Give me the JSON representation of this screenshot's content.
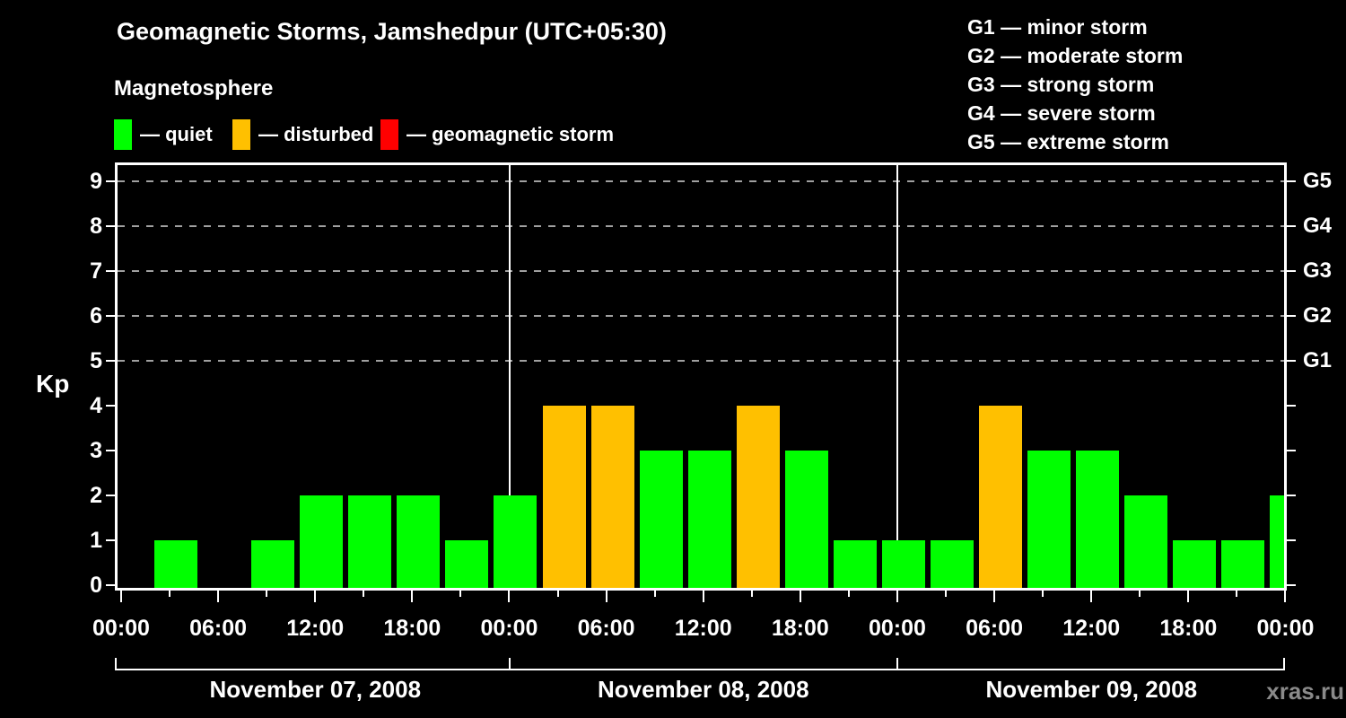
{
  "title": "Geomagnetic Storms, Jamshedpur (UTC+05:30)",
  "subtitle": "Magnetosphere",
  "legend": {
    "items": [
      {
        "name": "quiet",
        "label": "— quiet",
        "color": "#00ff00"
      },
      {
        "name": "disturbed",
        "label": "— disturbed",
        "color": "#ffc000"
      },
      {
        "name": "geomagnetic-storm",
        "label": "— geomagnetic storm",
        "color": "#ff0000"
      }
    ]
  },
  "storm_scale": [
    "G1 — minor storm",
    "G2 — moderate storm",
    "G3 — strong storm",
    "G4 — severe storm",
    "G5 — extreme storm"
  ],
  "watermark": "xras.ru",
  "chart_data": {
    "type": "bar",
    "title": "Geomagnetic Storms, Jamshedpur (UTC+05:30)",
    "ylabel": "Kp",
    "ylim": [
      0,
      9.5
    ],
    "y_ticks": [
      0,
      1,
      2,
      3,
      4,
      5,
      6,
      7,
      8,
      9
    ],
    "gridlines_at": [
      5,
      6,
      7,
      8,
      9
    ],
    "grid": "dashed horizontal lines at Kp 5-9 only",
    "right_axis_labels": [
      {
        "kp": 5,
        "label": "G1"
      },
      {
        "kp": 6,
        "label": "G2"
      },
      {
        "kp": 7,
        "label": "G3"
      },
      {
        "kp": 8,
        "label": "G4"
      },
      {
        "kp": 9,
        "label": "G5"
      }
    ],
    "x_tick_labels_cycle": [
      "00:00",
      "06:00",
      "12:00",
      "18:00"
    ],
    "bar_interval_hours": 3,
    "days": [
      {
        "date": "November 07, 2008",
        "values": [
          0,
          1,
          0,
          1,
          2,
          2,
          2,
          1
        ]
      },
      {
        "date": "November 08, 2008",
        "values": [
          2,
          4,
          4,
          3,
          3,
          4,
          3,
          1
        ]
      },
      {
        "date": "November 09, 2008",
        "values": [
          1,
          1,
          4,
          3,
          3,
          2,
          1,
          1
        ]
      }
    ],
    "next_interval_partial_value": 2,
    "colors": {
      "quiet": "#00ff00",
      "disturbed": "#ffc000",
      "storm": "#ff0000",
      "grid": "#a0a0a0",
      "axis": "#ffffff",
      "background": "#000000",
      "watermark": "#8a8a8a"
    },
    "color_thresholds": {
      "quiet_max_kp": 3,
      "disturbed_max_kp": 4
    },
    "legend_position": "top-left"
  }
}
